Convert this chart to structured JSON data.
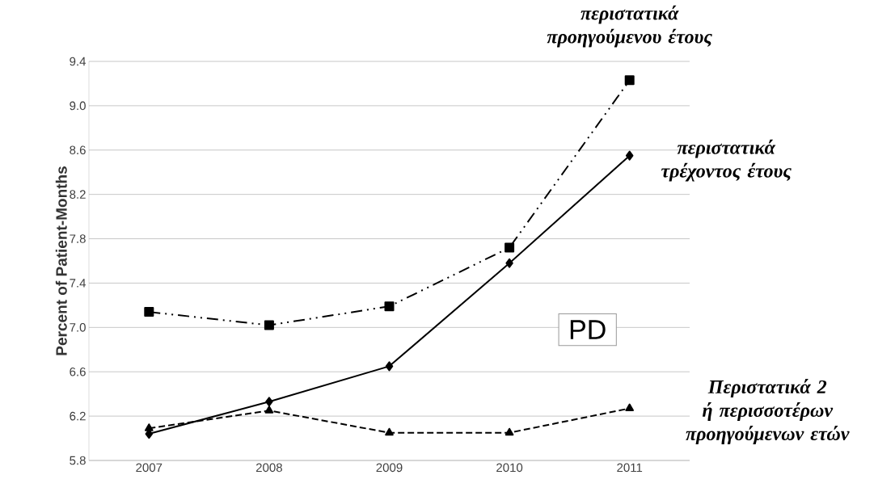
{
  "chart_data": {
    "type": "line",
    "ylabel": "Percent of Patient-Months",
    "categories": [
      "2007",
      "2008",
      "2009",
      "2010",
      "2011"
    ],
    "series": [
      {
        "name": "περιστατικά προηγούμενου έτους",
        "color": "#000000",
        "marker": "square",
        "line_style": "dashed",
        "values": [
          7.14,
          7.02,
          7.19,
          7.72,
          9.23
        ]
      },
      {
        "name": "περιστατικά τρέχοντος έτους",
        "color": "#000000",
        "marker": "diamond",
        "line_style": "solid",
        "values": [
          6.04,
          6.33,
          6.65,
          7.58,
          8.55
        ]
      },
      {
        "name": "Περιστατικά 2 ή περισσοτέρων προηγούμενων ετών",
        "color": "#000000",
        "marker": "triangle",
        "line_style": "dashed",
        "values": [
          6.09,
          6.25,
          6.05,
          6.05,
          6.27
        ]
      }
    ],
    "ylim": [
      5.8,
      9.4
    ],
    "yticks": [
      5.8,
      6.2,
      6.6,
      {
        "value": 7,
        "label": "7.0"
      },
      7.4,
      7.8,
      8.2,
      8.6,
      {
        "value": 9,
        "label": "9.0"
      },
      9.4
    ],
    "grid": "y",
    "annotations": [
      "PD"
    ]
  }
}
